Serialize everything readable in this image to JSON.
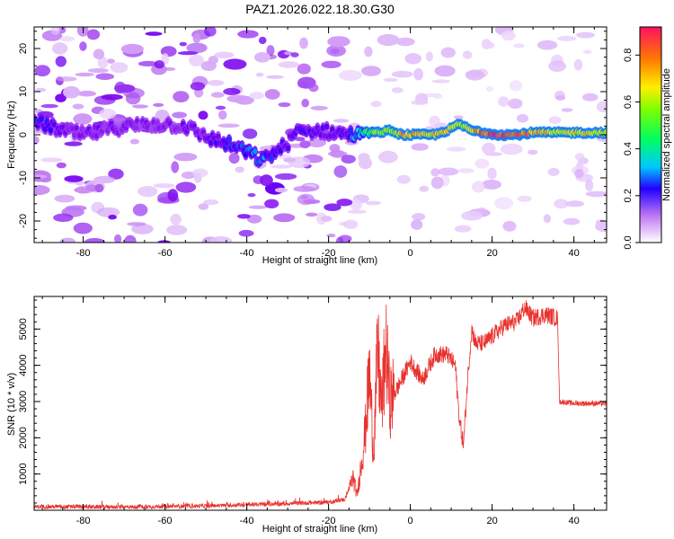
{
  "title": "PAZ1.2026.022.18.30.G30",
  "chart_data": [
    {
      "type": "heatmap",
      "xlabel": "Height of straight line (km)",
      "ylabel": "Frequency (Hz)",
      "xlim": [
        -92,
        48
      ],
      "ylim": [
        -25,
        25
      ],
      "xticks": [
        -80,
        -60,
        -40,
        -20,
        0,
        20,
        40
      ],
      "yticks": [
        -20,
        -10,
        0,
        10,
        20
      ],
      "colorbar": {
        "label": "Normalized spectral amplitude",
        "range": [
          0,
          0.92
        ],
        "ticks": [
          0.0,
          0.2,
          0.4,
          0.6,
          0.8
        ]
      },
      "ridge": {
        "description_points": [
          {
            "x": -90,
            "y": 2.5,
            "amp": 0.25
          },
          {
            "x": -85,
            "y": 1.0,
            "amp": 0.2
          },
          {
            "x": -80,
            "y": 0.0,
            "amp": 0.2
          },
          {
            "x": -70,
            "y": 2.0,
            "amp": 0.18
          },
          {
            "x": -60,
            "y": 2.5,
            "amp": 0.18
          },
          {
            "x": -55,
            "y": 2.0,
            "amp": 0.2
          },
          {
            "x": -50,
            "y": -0.5,
            "amp": 0.2
          },
          {
            "x": -45,
            "y": -2.0,
            "amp": 0.25
          },
          {
            "x": -40,
            "y": -4.0,
            "amp": 0.28
          },
          {
            "x": -36,
            "y": -6.0,
            "amp": 0.3
          },
          {
            "x": -30,
            "y": -2.0,
            "amp": 0.2
          },
          {
            "x": -28,
            "y": 0.5,
            "amp": 0.25
          },
          {
            "x": -22,
            "y": 1.0,
            "amp": 0.2
          },
          {
            "x": -15,
            "y": 0.0,
            "amp": 0.25
          },
          {
            "x": -12,
            "y": 0.5,
            "amp": 0.4
          },
          {
            "x": -8,
            "y": 0.5,
            "amp": 0.6
          },
          {
            "x": -5,
            "y": 1.0,
            "amp": 0.55
          },
          {
            "x": -2,
            "y": 0.0,
            "amp": 0.7
          },
          {
            "x": 2,
            "y": 0.0,
            "amp": 0.75
          },
          {
            "x": 6,
            "y": 0.0,
            "amp": 0.65
          },
          {
            "x": 9,
            "y": 1.0,
            "amp": 0.7
          },
          {
            "x": 12,
            "y": 2.5,
            "amp": 0.6
          },
          {
            "x": 15,
            "y": 1.0,
            "amp": 0.7
          },
          {
            "x": 18,
            "y": 0.5,
            "amp": 0.85
          },
          {
            "x": 22,
            "y": 0.0,
            "amp": 0.88
          },
          {
            "x": 26,
            "y": 0.0,
            "amp": 0.9
          },
          {
            "x": 30,
            "y": 0.5,
            "amp": 0.75
          },
          {
            "x": 35,
            "y": 0.5,
            "amp": 0.65
          },
          {
            "x": 40,
            "y": 0.5,
            "amp": 0.68
          },
          {
            "x": 45,
            "y": 0.5,
            "amp": 0.65
          },
          {
            "x": 48,
            "y": 0.5,
            "amp": 0.62
          }
        ]
      }
    },
    {
      "type": "line",
      "xlabel": "Height of straight line (km)",
      "ylabel": "SNR (10 * v/v)",
      "xlim": [
        -92,
        48
      ],
      "ylim": [
        0,
        5900
      ],
      "xticks": [
        -80,
        -60,
        -40,
        -20,
        0,
        20,
        40
      ],
      "yticks": [
        1000,
        2000,
        3000,
        4000,
        5000
      ],
      "color": "#e8322e",
      "envelope": [
        {
          "x": -92,
          "y": 100
        },
        {
          "x": -70,
          "y": 90
        },
        {
          "x": -50,
          "y": 120
        },
        {
          "x": -30,
          "y": 180
        },
        {
          "x": -20,
          "y": 220
        },
        {
          "x": -16,
          "y": 300
        },
        {
          "x": -14,
          "y": 900
        },
        {
          "x": -13,
          "y": 400
        },
        {
          "x": -11,
          "y": 2200
        },
        {
          "x": -10,
          "y": 3800
        },
        {
          "x": -9,
          "y": 1600
        },
        {
          "x": -8,
          "y": 4400
        },
        {
          "x": -7,
          "y": 2800
        },
        {
          "x": -6,
          "y": 4500
        },
        {
          "x": -5,
          "y": 3000
        },
        {
          "x": -3,
          "y": 3400
        },
        {
          "x": 0,
          "y": 4100
        },
        {
          "x": 3,
          "y": 3600
        },
        {
          "x": 6,
          "y": 4300
        },
        {
          "x": 9,
          "y": 4300
        },
        {
          "x": 11,
          "y": 4000
        },
        {
          "x": 12,
          "y": 2500
        },
        {
          "x": 13,
          "y": 1800
        },
        {
          "x": 14,
          "y": 3600
        },
        {
          "x": 15,
          "y": 5000
        },
        {
          "x": 16,
          "y": 4600
        },
        {
          "x": 18,
          "y": 4600
        },
        {
          "x": 20,
          "y": 4800
        },
        {
          "x": 23,
          "y": 5100
        },
        {
          "x": 26,
          "y": 5200
        },
        {
          "x": 28,
          "y": 5600
        },
        {
          "x": 30,
          "y": 5300
        },
        {
          "x": 33,
          "y": 5400
        },
        {
          "x": 36,
          "y": 5300
        },
        {
          "x": 36.5,
          "y": 3000
        },
        {
          "x": 40,
          "y": 2950
        },
        {
          "x": 44,
          "y": 2950
        },
        {
          "x": 48,
          "y": 2950
        }
      ]
    }
  ]
}
